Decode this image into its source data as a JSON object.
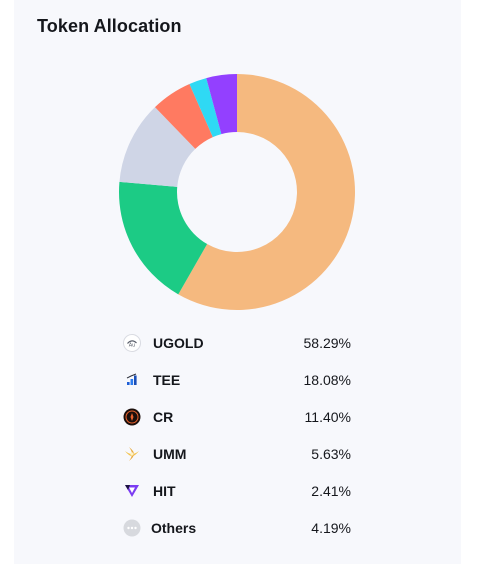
{
  "title": "Token Allocation",
  "chart_data": {
    "type": "pie",
    "title": "Token Allocation",
    "categories": [
      "UGOLD",
      "TEE",
      "CR",
      "UMM",
      "HIT",
      "Others"
    ],
    "values": [
      58.29,
      18.08,
      11.4,
      5.63,
      2.41,
      4.19
    ],
    "value_labels": [
      "58.29%",
      "18.08%",
      "11.40%",
      "5.63%",
      "2.41%",
      "4.19%"
    ],
    "colors": [
      "#f5b97f",
      "#1ccb85",
      "#cfd5e6",
      "#ff7a61",
      "#2fd9f4",
      "#9340ff"
    ],
    "hole": "donut",
    "legend": "bottom"
  },
  "legend": [
    {
      "name": "UGOLD",
      "value": "58.29%",
      "icon": "ugold-token-icon"
    },
    {
      "name": "TEE",
      "value": "18.08%",
      "icon": "tee-token-icon"
    },
    {
      "name": "CR",
      "value": "11.40%",
      "icon": "cr-token-icon"
    },
    {
      "name": "UMM",
      "value": "5.63%",
      "icon": "umm-token-icon"
    },
    {
      "name": "HIT",
      "value": "2.41%",
      "icon": "hit-token-icon"
    },
    {
      "name": "Others",
      "value": "4.19%",
      "icon": "more-dots-icon"
    }
  ]
}
